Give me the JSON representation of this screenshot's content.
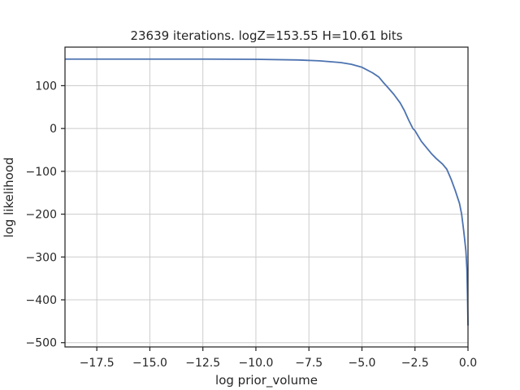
{
  "chart_data": {
    "type": "line",
    "title": "23639 iterations. logZ=153.55 H=10.61 bits",
    "xlabel": "log prior_volume",
    "ylabel": "log likelihood",
    "xlim": [
      -19.0,
      0.0
    ],
    "ylim": [
      -510,
      190
    ],
    "grid": true,
    "x_ticks": [
      -17.5,
      -15.0,
      -12.5,
      -10.0,
      -7.5,
      -5.0,
      -2.5,
      0.0
    ],
    "x_tick_labels": [
      "−17.5",
      "−15.0",
      "−12.5",
      "−10.0",
      "−7.5",
      "−5.0",
      "−2.5",
      "0.0"
    ],
    "y_ticks": [
      100,
      0,
      -100,
      -200,
      -300,
      -400,
      -500
    ],
    "y_tick_labels": [
      "100",
      "0",
      "−100",
      "−200",
      "−300",
      "−400",
      "−500"
    ],
    "series": [
      {
        "color": "#4c72b0",
        "x": [
          -19.0,
          -17.5,
          -15.0,
          -12.5,
          -10.0,
          -8.0,
          -7.0,
          -6.0,
          -5.5,
          -5.0,
          -4.5,
          -4.2,
          -4.0,
          -3.8,
          -3.5,
          -3.2,
          -3.0,
          -2.8,
          -2.6,
          -2.5,
          -2.2,
          -2.0,
          -1.7,
          -1.5,
          -1.2,
          -1.0,
          -0.8,
          -0.6,
          -0.4,
          -0.3,
          -0.2,
          -0.1,
          -0.05,
          -0.02,
          0.0
        ],
        "y": [
          162,
          162,
          162,
          162,
          161.5,
          160,
          158,
          154,
          150,
          143,
          130,
          120,
          108,
          97,
          80,
          60,
          42,
          20,
          0,
          -5,
          -30,
          -42,
          -60,
          -70,
          -83,
          -95,
          -118,
          -145,
          -175,
          -200,
          -240,
          -285,
          -330,
          -400,
          -460
        ]
      }
    ]
  }
}
